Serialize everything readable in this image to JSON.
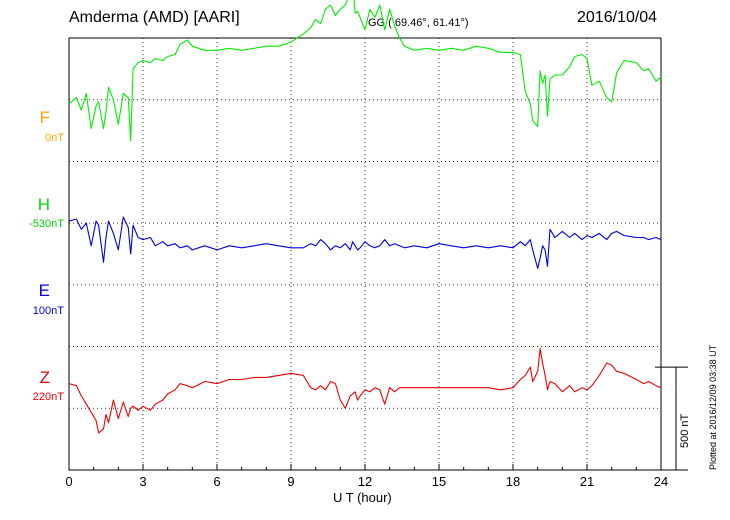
{
  "header": {
    "station": "Amderma (AMD)  [AARI]",
    "coords": "GG ( 69.46°,  61.41°)",
    "date": "2016/10/04"
  },
  "components": [
    {
      "name": "F",
      "baseline": "0nT",
      "color": "#ffa500"
    },
    {
      "name": "H",
      "baseline": "-530nT",
      "color": "#00ee00"
    },
    {
      "name": "E",
      "baseline": "100nT",
      "color": "#0000dd"
    },
    {
      "name": "Z",
      "baseline": "220nT",
      "color": "#ee0000"
    }
  ],
  "scale_bar": {
    "label": "500 nT",
    "value_nT": 500
  },
  "plotted_note": "Plotted at 2016/12/09 03:38 UT",
  "chart_data": {
    "type": "line",
    "xlabel": "U T (hour)",
    "xlim": [
      0,
      24
    ],
    "ylim_nT": [
      -2100,
      0
    ],
    "x_ticks": [
      0,
      3,
      6,
      9,
      12,
      15,
      18,
      21,
      24
    ],
    "grid": true,
    "series": [
      {
        "name": "H",
        "baseline_nT": -530,
        "offset_nT": -420,
        "x": [
          0,
          0.3,
          0.5,
          0.7,
          0.9,
          1.1,
          1.2,
          1.4,
          1.5,
          1.6,
          1.8,
          2.0,
          2.2,
          2.4,
          2.5,
          2.6,
          2.8,
          3.0,
          3.3,
          3.5,
          3.8,
          4.0,
          4.3,
          4.5,
          4.8,
          5.0,
          5.5,
          6.0,
          6.5,
          7.0,
          7.5,
          8.0,
          8.5,
          9.0,
          9.5,
          9.8,
          10.0,
          10.2,
          10.4,
          10.6,
          10.8,
          11.0,
          11.2,
          11.4,
          11.5,
          11.6,
          11.7,
          11.8,
          12.0,
          12.2,
          12.4,
          12.6,
          12.8,
          13.0,
          13.2,
          13.4,
          13.6,
          14.0,
          14.5,
          15.0,
          15.5,
          16.0,
          16.5,
          17.0,
          17.5,
          18.0,
          18.3,
          18.5,
          18.7,
          18.8,
          19.0,
          19.1,
          19.2,
          19.3,
          19.4,
          19.5,
          19.7,
          20.0,
          20.3,
          20.5,
          20.8,
          21.0,
          21.2,
          21.5,
          21.8,
          22.0,
          22.2,
          22.5,
          23.0,
          23.3,
          23.5,
          23.8,
          24.0
        ],
        "y": [
          100,
          130,
          70,
          150,
          -20,
          90,
          110,
          -20,
          60,
          180,
          120,
          0,
          150,
          130,
          -80,
          270,
          300,
          310,
          300,
          320,
          310,
          330,
          340,
          390,
          410,
          380,
          360,
          360,
          370,
          360,
          370,
          380,
          380,
          400,
          440,
          470,
          510,
          490,
          560,
          580,
          530,
          560,
          580,
          640,
          700,
          540,
          550,
          520,
          460,
          560,
          520,
          580,
          460,
          560,
          480,
          420,
          380,
          360,
          370,
          360,
          370,
          360,
          380,
          370,
          350,
          350,
          340,
          160,
          100,
          20,
          -10,
          260,
          200,
          240,
          40,
          220,
          240,
          240,
          280,
          330,
          340,
          320,
          190,
          210,
          130,
          110,
          250,
          310,
          300,
          260,
          270,
          210,
          230
        ]
      },
      {
        "name": "E",
        "baseline_nT": 100,
        "offset_nT": -1010,
        "x": [
          0,
          0.3,
          0.5,
          0.7,
          0.9,
          1.1,
          1.2,
          1.4,
          1.5,
          1.6,
          1.8,
          2.0,
          2.2,
          2.4,
          2.5,
          2.6,
          2.8,
          3.0,
          3.3,
          3.5,
          3.8,
          4.0,
          4.3,
          4.5,
          4.8,
          5.0,
          5.5,
          6.0,
          6.5,
          7.0,
          7.5,
          8.0,
          8.5,
          9.0,
          9.5,
          9.8,
          10.0,
          10.2,
          10.4,
          10.6,
          10.8,
          11.0,
          11.2,
          11.4,
          11.5,
          11.6,
          11.7,
          11.8,
          12.0,
          12.2,
          12.4,
          12.6,
          12.8,
          13.0,
          13.2,
          13.4,
          13.6,
          14.0,
          14.5,
          15.0,
          15.5,
          16.0,
          16.5,
          17.0,
          17.5,
          18.0,
          18.3,
          18.5,
          18.7,
          18.8,
          19.0,
          19.1,
          19.2,
          19.3,
          19.4,
          19.5,
          19.7,
          20.0,
          20.3,
          20.5,
          20.8,
          21.0,
          21.2,
          21.5,
          21.8,
          22.0,
          22.2,
          22.5,
          23.0,
          23.3,
          23.5,
          23.8,
          24.0
        ],
        "y": [
          120,
          130,
          80,
          110,
          0,
          120,
          100,
          -80,
          40,
          120,
          60,
          -20,
          140,
          90,
          -40,
          100,
          40,
          30,
          40,
          0,
          20,
          0,
          10,
          -10,
          0,
          -20,
          0,
          -20,
          0,
          -10,
          0,
          10,
          0,
          -10,
          -10,
          10,
          0,
          30,
          10,
          -20,
          0,
          -10,
          10,
          -20,
          20,
          0,
          -20,
          -10,
          20,
          0,
          -10,
          0,
          30,
          0,
          10,
          0,
          -10,
          0,
          -10,
          10,
          0,
          -10,
          0,
          -10,
          0,
          -10,
          20,
          0,
          30,
          -20,
          -110,
          -60,
          0,
          -20,
          -100,
          80,
          40,
          70,
          40,
          60,
          30,
          50,
          40,
          60,
          30,
          60,
          70,
          50,
          40,
          40,
          30,
          40,
          30
        ]
      },
      {
        "name": "Z",
        "baseline_nT": 220,
        "offset_nT": -1700,
        "x": [
          0,
          0.3,
          0.5,
          0.7,
          0.9,
          1.1,
          1.2,
          1.4,
          1.5,
          1.6,
          1.8,
          2.0,
          2.2,
          2.4,
          2.5,
          2.6,
          2.8,
          3.0,
          3.3,
          3.5,
          3.8,
          4.0,
          4.3,
          4.5,
          4.8,
          5.0,
          5.5,
          6.0,
          6.5,
          7.0,
          7.5,
          8.0,
          8.5,
          9.0,
          9.5,
          9.8,
          10.0,
          10.2,
          10.4,
          10.6,
          10.8,
          11.0,
          11.2,
          11.4,
          11.5,
          11.6,
          11.7,
          11.8,
          12.0,
          12.2,
          12.4,
          12.6,
          12.8,
          13.0,
          13.2,
          13.4,
          13.6,
          14.0,
          14.5,
          15.0,
          15.5,
          16.0,
          16.5,
          17.0,
          17.5,
          18.0,
          18.3,
          18.5,
          18.7,
          18.8,
          19.0,
          19.1,
          19.2,
          19.3,
          19.4,
          19.5,
          19.7,
          20.0,
          20.3,
          20.5,
          20.8,
          21.0,
          21.2,
          21.5,
          21.8,
          22.0,
          22.2,
          22.5,
          23.0,
          23.3,
          23.5,
          23.8,
          24.0
        ],
        "y": [
          20,
          10,
          -40,
          -80,
          -120,
          -160,
          -220,
          -200,
          -130,
          -170,
          -60,
          -150,
          -70,
          -140,
          -100,
          -90,
          -110,
          -90,
          -110,
          -80,
          -60,
          -30,
          -10,
          20,
          10,
          0,
          30,
          20,
          40,
          40,
          50,
          50,
          60,
          70,
          60,
          0,
          -10,
          10,
          -10,
          30,
          20,
          -60,
          -100,
          -40,
          -30,
          -20,
          -60,
          -40,
          -10,
          -20,
          0,
          -10,
          -80,
          0,
          -20,
          0,
          0,
          0,
          0,
          0,
          0,
          0,
          0,
          0,
          -10,
          0,
          40,
          60,
          100,
          30,
          80,
          190,
          120,
          60,
          -10,
          30,
          20,
          -20,
          10,
          -20,
          0,
          -10,
          10,
          60,
          120,
          110,
          80,
          70,
          40,
          20,
          30,
          10,
          0
        ]
      }
    ]
  }
}
